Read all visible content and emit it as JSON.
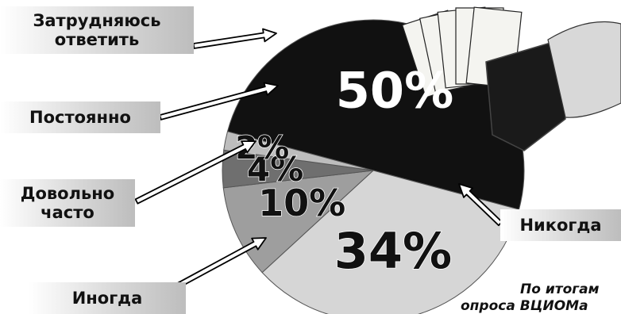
{
  "chart_data": {
    "type": "pie",
    "slices": [
      {
        "label": "Никогда",
        "value": 50,
        "value_label": "50%",
        "color": "#111111"
      },
      {
        "label": "Иногда",
        "value": 34,
        "value_label": "34%",
        "color": "#d6d6d6"
      },
      {
        "label": "Довольно часто",
        "value": 10,
        "value_label": "10%",
        "color": "#9e9e9e"
      },
      {
        "label": "Постоянно",
        "value": 4,
        "value_label": "4%",
        "color": "#6f6f6f"
      },
      {
        "label": "Затрудняюсь ответить",
        "value": 2,
        "value_label": "2%",
        "color": "#bdbdbd"
      }
    ]
  },
  "labels": {
    "unsure": "Затрудняюсь\nответить",
    "always": "Постоянно",
    "often": "Довольно\nчасто",
    "sometimes": "Иногда",
    "never": "Никогда"
  },
  "source_lines": [
    "По итогам",
    "опроса ВЦИОМа"
  ]
}
